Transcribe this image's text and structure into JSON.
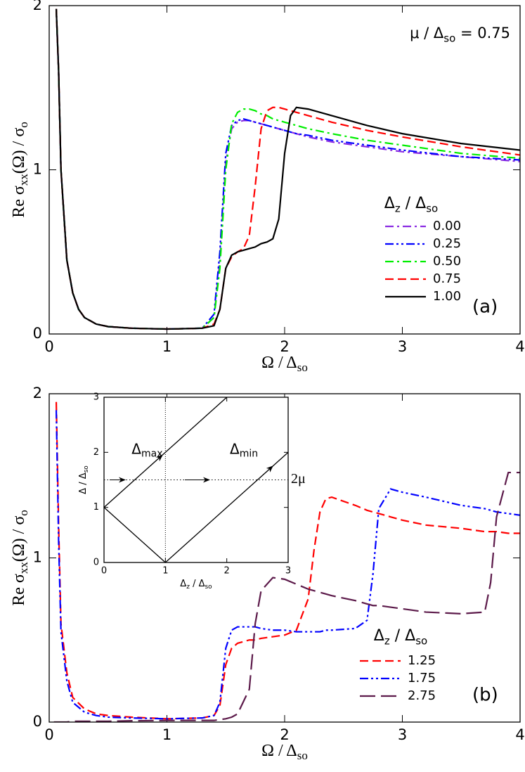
{
  "chart_data": [
    {
      "type": "line",
      "x_label": [
        "Ω / Δ",
        "so"
      ],
      "y_label": [
        "Re σ",
        "xx",
        "(Ω) / σ",
        "o"
      ],
      "annotation": [
        "μ / Δ",
        "so",
        " = 0.75"
      ],
      "panel_label": "(a)",
      "legend_title": [
        "Δ",
        "z",
        " / Δ",
        "so"
      ],
      "xlim": [
        0,
        4
      ],
      "ylim": [
        0,
        2
      ],
      "xticks": [
        0,
        1,
        2,
        3,
        4
      ],
      "yticks": [
        0,
        1,
        2
      ],
      "x": [
        0.04,
        0.06,
        0.08,
        0.1,
        0.15,
        0.2,
        0.25,
        0.3,
        0.4,
        0.5,
        0.7,
        1.0,
        1.3,
        1.4,
        1.45,
        1.5,
        1.55,
        1.6,
        1.65,
        1.7,
        1.75,
        1.8,
        1.85,
        1.9,
        1.95,
        2.0,
        2.05,
        2.1,
        2.2,
        2.4,
        2.7,
        3.0,
        3.5,
        4.0
      ],
      "series": [
        {
          "name": "0.00",
          "color": "#8a2be2",
          "style": "dashdot",
          "values": [
            null,
            1.98,
            1.6,
            1.0,
            0.45,
            0.25,
            0.15,
            0.1,
            0.06,
            0.045,
            0.035,
            0.03,
            0.035,
            0.1,
            0.45,
            1.05,
            1.25,
            1.29,
            1.3,
            1.3,
            1.29,
            1.28,
            1.27,
            1.26,
            1.25,
            1.24,
            1.23,
            1.22,
            1.2,
            1.17,
            1.14,
            1.11,
            1.08,
            1.05
          ]
        },
        {
          "name": "0.25",
          "color": "#0000ff",
          "style": "dashdotdot",
          "values": [
            null,
            1.98,
            1.6,
            1.0,
            0.45,
            0.25,
            0.15,
            0.1,
            0.06,
            0.045,
            0.035,
            0.03,
            0.035,
            0.12,
            0.5,
            1.1,
            1.27,
            1.3,
            1.31,
            1.3,
            1.29,
            1.28,
            1.27,
            1.26,
            1.25,
            1.24,
            1.23,
            1.22,
            1.21,
            1.18,
            1.15,
            1.12,
            1.08,
            1.06
          ]
        },
        {
          "name": "0.50",
          "color": "#00ee00",
          "style": "dashdot",
          "values": [
            null,
            1.98,
            1.6,
            1.0,
            0.45,
            0.25,
            0.15,
            0.1,
            0.06,
            0.045,
            0.035,
            0.03,
            0.035,
            0.1,
            0.4,
            1.0,
            1.28,
            1.35,
            1.37,
            1.37,
            1.36,
            1.34,
            1.33,
            1.31,
            1.3,
            1.29,
            1.28,
            1.27,
            1.25,
            1.22,
            1.18,
            1.15,
            1.1,
            1.07
          ]
        },
        {
          "name": "0.75",
          "color": "#ff0000",
          "style": "dashed",
          "values": [
            null,
            1.98,
            1.6,
            1.0,
            0.45,
            0.25,
            0.15,
            0.1,
            0.06,
            0.045,
            0.035,
            0.03,
            0.035,
            0.06,
            0.15,
            0.4,
            0.47,
            0.5,
            0.52,
            0.6,
            0.9,
            1.25,
            1.36,
            1.38,
            1.38,
            1.37,
            1.36,
            1.35,
            1.33,
            1.29,
            1.24,
            1.2,
            1.14,
            1.09
          ]
        },
        {
          "name": "1.00",
          "color": "#000000",
          "style": "solid",
          "values": [
            null,
            1.98,
            1.6,
            1.0,
            0.45,
            0.25,
            0.15,
            0.1,
            0.06,
            0.045,
            0.035,
            0.03,
            0.035,
            0.05,
            0.15,
            0.4,
            0.48,
            0.5,
            0.51,
            0.52,
            0.53,
            0.55,
            0.56,
            0.58,
            0.7,
            1.1,
            1.33,
            1.38,
            1.37,
            1.33,
            1.27,
            1.22,
            1.16,
            1.12
          ]
        }
      ]
    },
    {
      "type": "line",
      "x_label": [
        "Ω / Δ",
        "so"
      ],
      "y_label": [
        "Re σ",
        "xx",
        "(Ω) / σ",
        "o"
      ],
      "panel_label": "(b)",
      "legend_title": [
        "Δ",
        "z",
        " / Δ",
        "so"
      ],
      "xlim": [
        0,
        4
      ],
      "ylim": [
        0,
        2
      ],
      "xticks": [
        0,
        1,
        2,
        3,
        4
      ],
      "yticks": [
        0,
        1,
        2
      ],
      "x": [
        0.04,
        0.06,
        0.08,
        0.1,
        0.15,
        0.2,
        0.3,
        0.4,
        0.5,
        0.7,
        1.0,
        1.3,
        1.4,
        1.45,
        1.5,
        1.55,
        1.6,
        1.7,
        1.75,
        1.8,
        1.9,
        2.0,
        2.1,
        2.2,
        2.25,
        2.3,
        2.35,
        2.4,
        2.6,
        2.7,
        2.75,
        2.8,
        2.9,
        3.0,
        3.2,
        3.5,
        3.7,
        3.75,
        3.8,
        3.9,
        4.0
      ],
      "series": [
        {
          "name": "1.25",
          "color": "#ff0000",
          "style": "dashed",
          "values": [
            null,
            1.95,
            1.2,
            0.6,
            0.3,
            0.15,
            0.08,
            0.05,
            0.04,
            0.03,
            0.02,
            0.025,
            0.04,
            0.1,
            0.35,
            0.45,
            0.48,
            0.5,
            0.5,
            0.51,
            0.52,
            0.53,
            0.56,
            0.75,
            1.05,
            1.28,
            1.36,
            1.37,
            1.32,
            1.29,
            1.28,
            1.27,
            1.25,
            1.23,
            1.2,
            1.18,
            1.16,
            1.16,
            1.16,
            1.15,
            1.15
          ]
        },
        {
          "name": "1.75",
          "color": "#0000ff",
          "style": "dashdotdot",
          "values": [
            null,
            1.9,
            1.1,
            0.55,
            0.25,
            0.12,
            0.06,
            0.04,
            0.03,
            0.025,
            0.02,
            0.025,
            0.04,
            0.12,
            0.45,
            0.56,
            0.58,
            0.58,
            0.58,
            0.57,
            0.56,
            0.56,
            0.55,
            0.55,
            0.55,
            0.55,
            0.56,
            0.56,
            0.57,
            0.62,
            0.9,
            1.3,
            1.42,
            1.4,
            1.37,
            1.32,
            1.3,
            1.29,
            1.28,
            1.27,
            1.26
          ]
        },
        {
          "name": "2.75",
          "color": "#5c1a4a",
          "style": "longdash",
          "values": [
            0,
            0,
            0,
            0,
            0,
            0.005,
            0.005,
            0.005,
            0.005,
            0.008,
            0.01,
            0.01,
            0.01,
            0.015,
            0.02,
            0.03,
            0.05,
            0.2,
            0.6,
            0.8,
            0.88,
            0.87,
            0.84,
            0.81,
            0.8,
            0.79,
            0.78,
            0.77,
            0.74,
            0.72,
            0.71,
            0.71,
            0.7,
            0.69,
            0.67,
            0.66,
            0.67,
            0.85,
            1.25,
            1.52,
            1.52
          ]
        }
      ]
    },
    {
      "type": "inset",
      "x_label": [
        "Δ",
        "z",
        " / Δ",
        "so"
      ],
      "y_label": [
        "Δ / Δ",
        "so"
      ],
      "xlim": [
        0,
        3
      ],
      "ylim": [
        0,
        3
      ],
      "xticks": [
        0,
        1,
        2,
        3
      ],
      "yticks": [
        0,
        1,
        2,
        3
      ],
      "lines": [
        {
          "x": [
            0,
            2
          ],
          "y": [
            1,
            3
          ]
        },
        {
          "x": [
            0,
            1,
            3
          ],
          "y": [
            1,
            0,
            2
          ]
        }
      ],
      "vlines": [
        1
      ],
      "hlines": [
        1.5
      ],
      "label_max": [
        "Δ",
        "max"
      ],
      "label_min": [
        "Δ",
        "min"
      ],
      "label_2mu": "2μ"
    }
  ]
}
